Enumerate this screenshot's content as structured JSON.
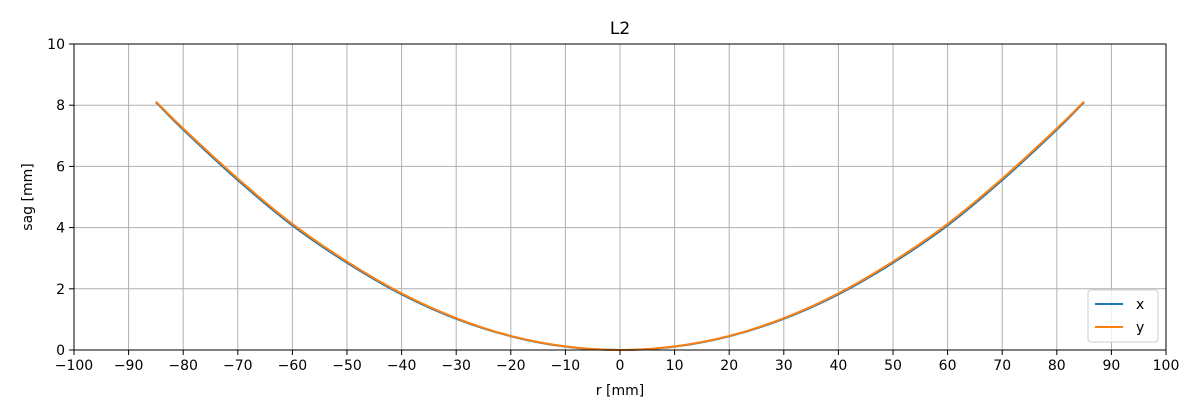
{
  "chart_data": {
    "type": "line",
    "title": "L2",
    "xlabel": "r [mm]",
    "ylabel": "sag [mm]",
    "xlim": [
      -100,
      100
    ],
    "ylim": [
      0,
      10
    ],
    "xticks": [
      -100,
      -90,
      -80,
      -70,
      -60,
      -50,
      -40,
      -30,
      -20,
      -10,
      0,
      10,
      20,
      30,
      40,
      50,
      60,
      70,
      80,
      90,
      100
    ],
    "yticks": [
      0,
      2,
      4,
      6,
      8,
      10
    ],
    "xtick_labels": [
      "−100",
      "−90",
      "−80",
      "−70",
      "−60",
      "−50",
      "−40",
      "−30",
      "−20",
      "−10",
      "0",
      "10",
      "20",
      "30",
      "40",
      "50",
      "60",
      "70",
      "80",
      "90",
      "100"
    ],
    "ytick_labels": [
      "0",
      "2",
      "4",
      "6",
      "8",
      "10"
    ],
    "grid": true,
    "legend_position": "bottom-right",
    "series": [
      {
        "name": "x",
        "color": "#1f77b4",
        "x": [
          -85,
          -80,
          -70,
          -60,
          -50,
          -40,
          -30,
          -20,
          -10,
          0,
          10,
          20,
          30,
          40,
          50,
          60,
          70,
          80,
          85
        ],
        "y": [
          8.1,
          7.2,
          5.55,
          4.07,
          2.85,
          1.82,
          1.02,
          0.45,
          0.11,
          0.0,
          0.11,
          0.45,
          1.02,
          1.82,
          2.85,
          4.07,
          5.55,
          7.2,
          8.1
        ]
      },
      {
        "name": "y",
        "color": "#ff7f0e",
        "x": [
          -85,
          -80,
          -70,
          -60,
          -50,
          -40,
          -30,
          -20,
          -10,
          0,
          10,
          20,
          30,
          40,
          50,
          60,
          70,
          80,
          85
        ],
        "y": [
          8.12,
          7.24,
          5.6,
          4.12,
          2.89,
          1.85,
          1.04,
          0.46,
          0.12,
          0.0,
          0.12,
          0.46,
          1.04,
          1.85,
          2.89,
          4.12,
          5.6,
          7.24,
          8.12
        ]
      }
    ]
  }
}
